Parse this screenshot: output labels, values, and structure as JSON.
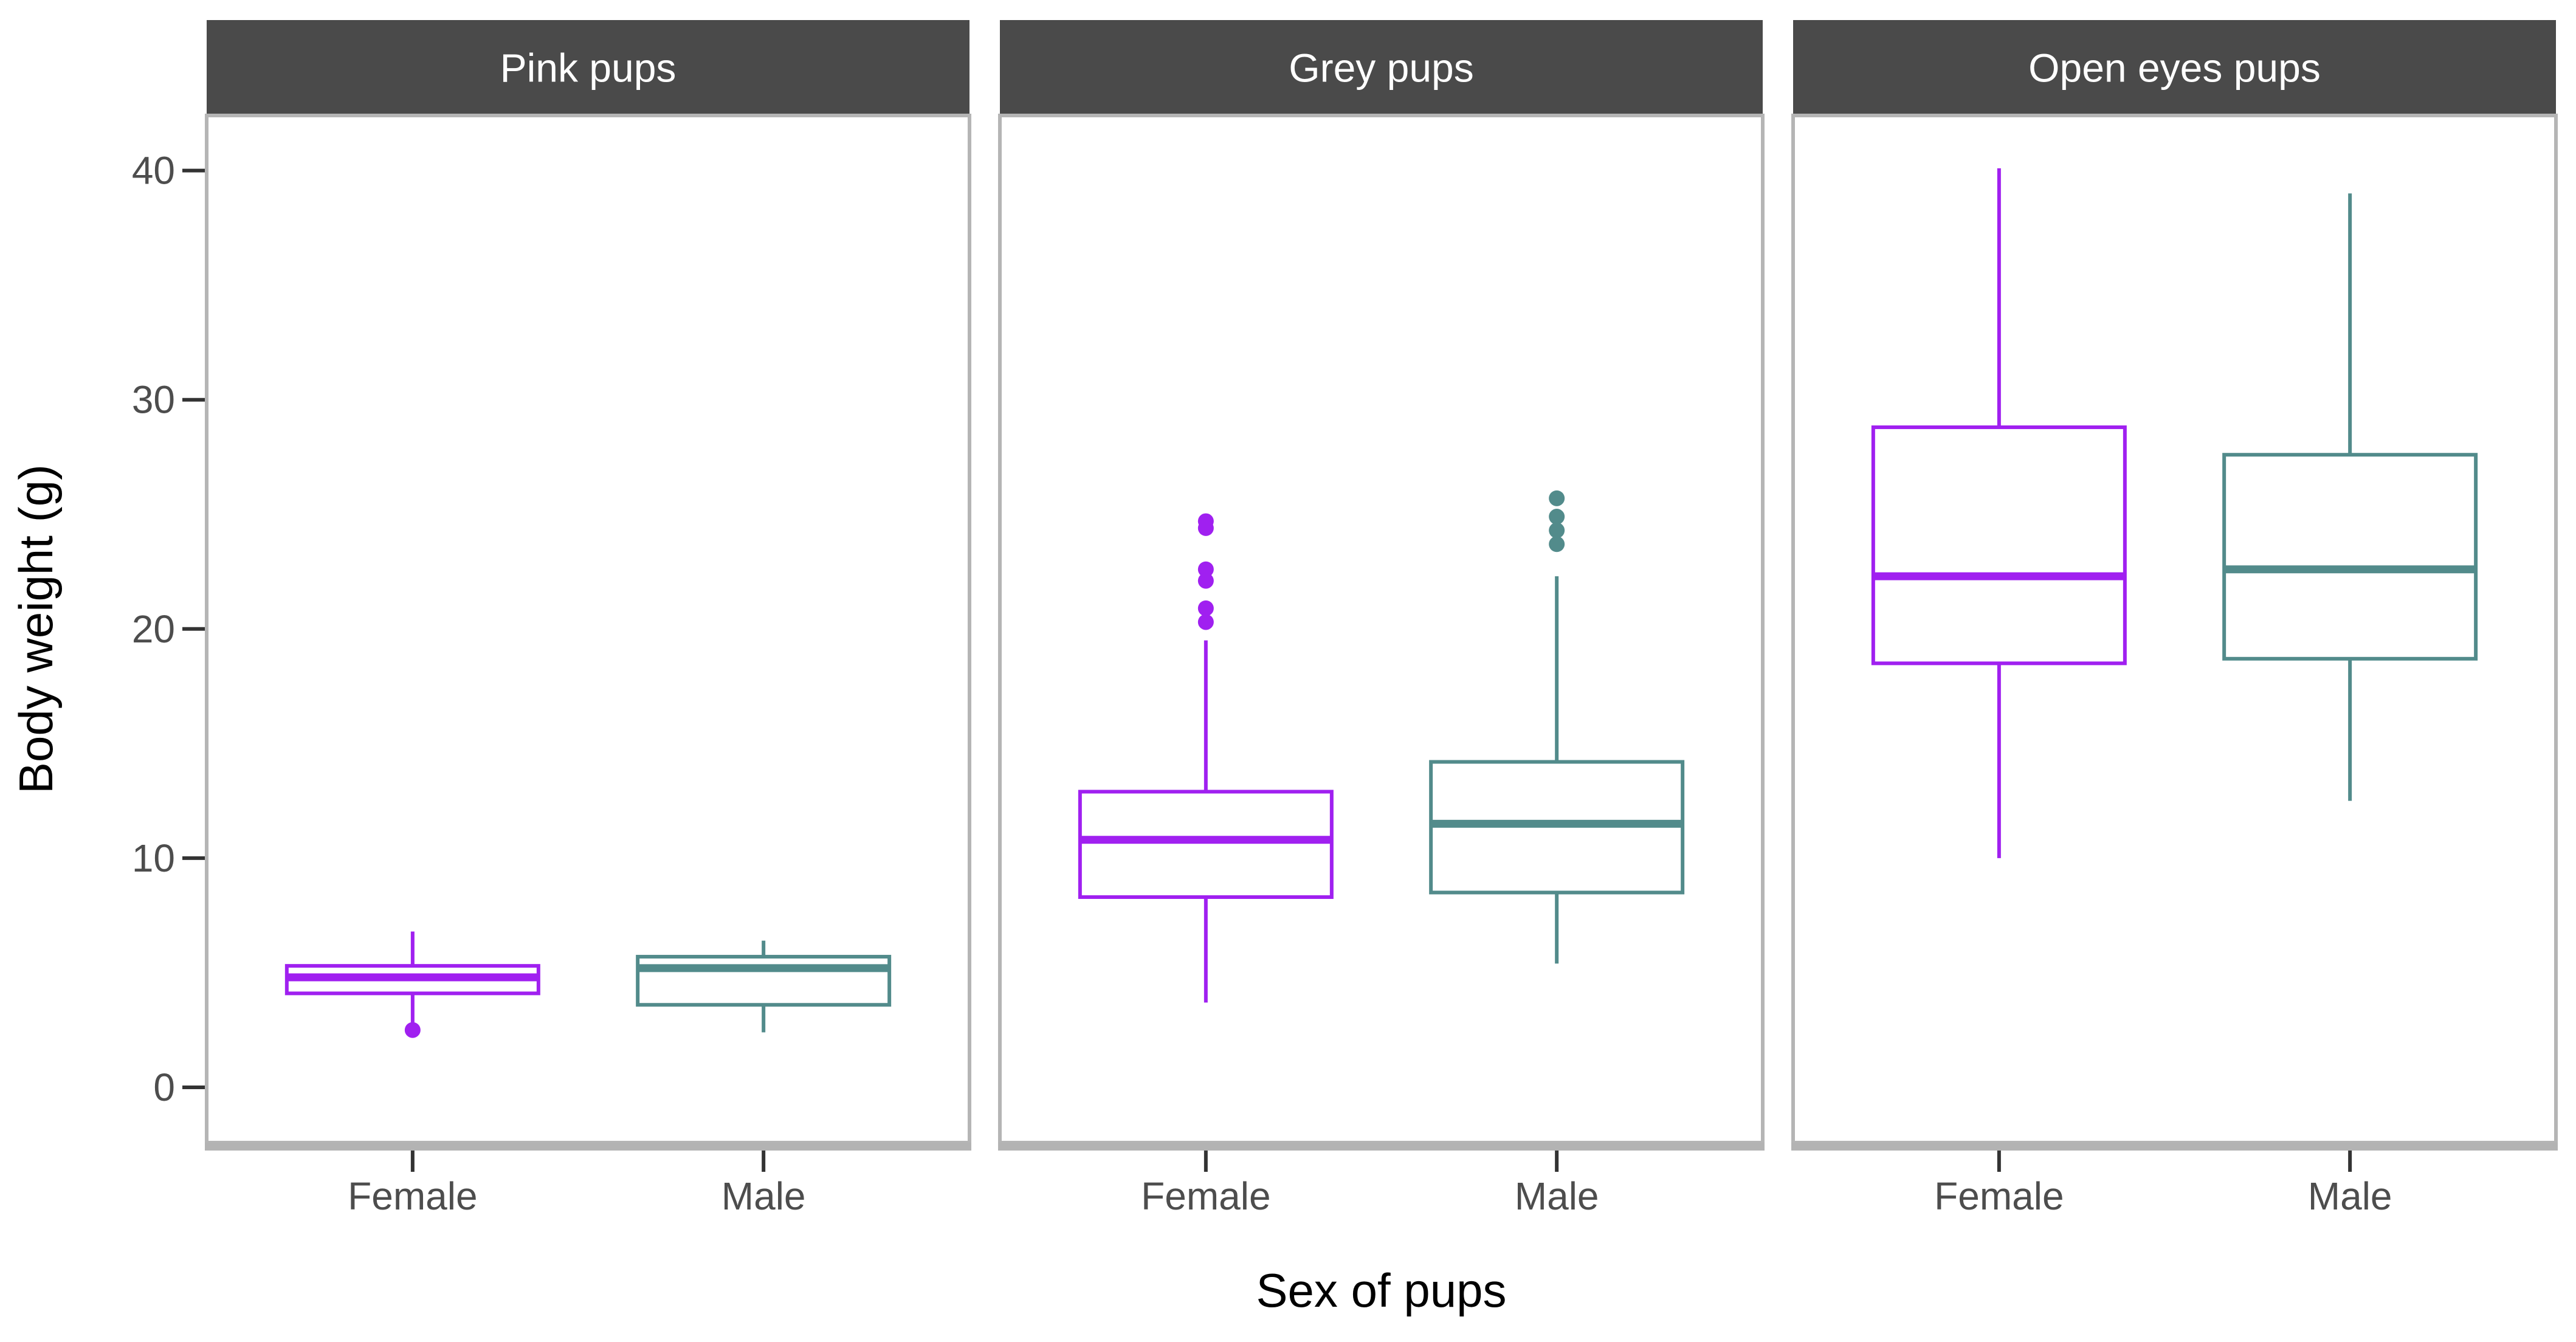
{
  "chart_data": {
    "type": "boxplot",
    "title": "",
    "xlabel": "Sex of pups",
    "ylabel": "Body weight (g)",
    "x_categories": [
      "Female",
      "Male"
    ],
    "y_ticks": [
      0,
      10,
      20,
      30,
      40
    ],
    "ylim": [
      -2.4,
      42.8
    ],
    "grid": "off",
    "legend": "none",
    "facets": [
      {
        "label": "Pink pups",
        "groups": [
          {
            "sex": "Female",
            "whisker_low": 2.8,
            "q1": 4.1,
            "median": 4.8,
            "q3": 5.3,
            "whisker_high": 6.8,
            "outliers": [
              2.5
            ]
          },
          {
            "sex": "Male",
            "whisker_low": 2.4,
            "q1": 3.6,
            "median": 5.2,
            "q3": 5.7,
            "whisker_high": 6.4,
            "outliers": []
          }
        ]
      },
      {
        "label": "Grey pups",
        "groups": [
          {
            "sex": "Female",
            "whisker_low": 3.7,
            "q1": 8.3,
            "median": 10.8,
            "q3": 12.9,
            "whisker_high": 19.5,
            "outliers": [
              24.7,
              24.4,
              22.6,
              22.1,
              20.9,
              20.3
            ]
          },
          {
            "sex": "Male",
            "whisker_low": 5.4,
            "q1": 8.5,
            "median": 11.5,
            "q3": 14.2,
            "whisker_high": 22.3,
            "outliers": [
              25.7,
              24.9,
              24.3,
              23.7
            ]
          }
        ]
      },
      {
        "label": "Open eyes pups",
        "groups": [
          {
            "sex": "Female",
            "whisker_low": 10.0,
            "q1": 18.5,
            "median": 22.3,
            "q3": 28.8,
            "whisker_high": 40.1,
            "outliers": []
          },
          {
            "sex": "Male",
            "whisker_low": 12.5,
            "q1": 18.7,
            "median": 22.6,
            "q3": 27.6,
            "whisker_high": 39.0,
            "outliers": []
          }
        ]
      }
    ],
    "colors": {
      "Female": "#A020F0",
      "Male": "#528B8B"
    },
    "styles": {
      "strip_bg": "#4A4A4A",
      "strip_text": "#FFFFFF",
      "panel_bg": "#FFFFFF",
      "panel_border": "#B5B5B5",
      "axis_bar": "#B3B3B3",
      "tick_mark": "#333333",
      "tick_label": "#4D4D4D",
      "axis_title": "#000000"
    }
  }
}
